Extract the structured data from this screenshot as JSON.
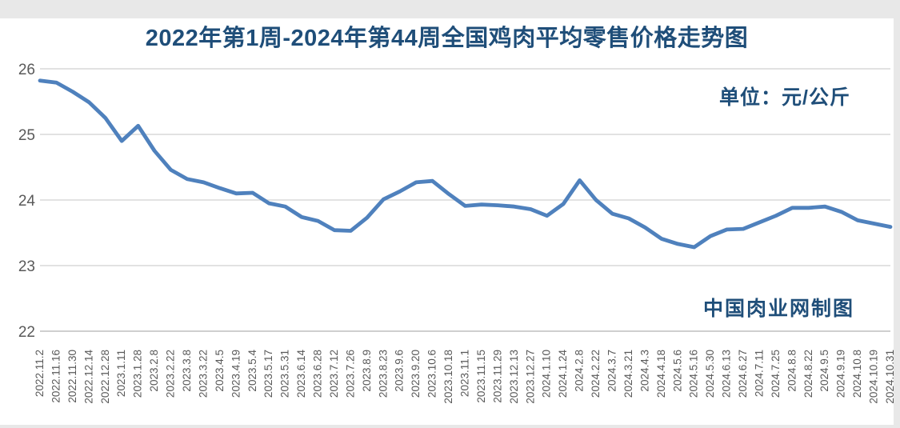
{
  "page": {
    "background": "#e8e8e8",
    "card_background": "#ffffff"
  },
  "chart_data": {
    "type": "line",
    "title": "2022年第1周-2024年第44周全国鸡肉平均零售价格走势图",
    "unit_label": "单位：元/公斤",
    "watermark": "中国肉业网制图",
    "ylabel": "",
    "xlabel": "",
    "ylim": [
      22,
      26
    ],
    "yticks": [
      26,
      25,
      24,
      23,
      22
    ],
    "grid": "horizontal",
    "legend": "none",
    "x_labels": [
      "2022.11.2",
      "2022.11.16",
      "2022.11.30",
      "2022.12.14",
      "2022.12.28",
      "2023.1.11",
      "2023.1.28",
      "2023.2.8",
      "2023.2.22",
      "2023.3.8",
      "2023.3.22",
      "2023.4.5",
      "2023.4.19",
      "2023.5.4",
      "2023.5.17",
      "2023.5.31",
      "2023.6.14",
      "2023.6.28",
      "2023.7.12",
      "2023.7.26",
      "2023.8.9",
      "2023.8.23",
      "2023.9.6",
      "2023.9.20",
      "2023.10.6",
      "2023.10.18",
      "2023.11.1",
      "2023.11.15",
      "2023.11.29",
      "2023.12.13",
      "2023.12.27",
      "2024.1.10",
      "2024.1.24",
      "2024.2.8",
      "2024.2.22",
      "2024.3.7",
      "2024.3.21",
      "2024.4.3",
      "2024.4.18",
      "2024.5.6",
      "2024.5.16",
      "2024.5.30",
      "2024.6.13",
      "2024.6.27",
      "2024.7.11",
      "2024.7.25",
      "2024.8.8",
      "2024.8.22",
      "2024.9.5",
      "2024.9.19",
      "2024.10.8",
      "2024.10.19",
      "2024.10.31"
    ],
    "values": [
      25.82,
      25.79,
      25.65,
      25.49,
      25.25,
      24.9,
      25.13,
      24.75,
      24.46,
      24.32,
      24.27,
      24.18,
      24.1,
      24.11,
      23.95,
      23.9,
      23.74,
      23.68,
      23.54,
      23.53,
      23.73,
      24.01,
      24.13,
      24.27,
      24.29,
      24.09,
      23.91,
      23.93,
      23.92,
      23.9,
      23.86,
      23.76,
      23.94,
      24.3,
      24.0,
      23.79,
      23.72,
      23.58,
      23.41,
      23.33,
      23.28,
      23.45,
      23.55,
      23.56,
      23.66,
      23.76,
      23.88,
      23.88,
      23.9,
      23.82,
      23.69,
      23.64,
      23.59
    ],
    "colors": {
      "line": "#4f81bd",
      "grid": "#d9d9d9",
      "axis_line": "#bfbfbf",
      "axis_labels": "#595959",
      "title_text": "#1f4e79"
    }
  }
}
